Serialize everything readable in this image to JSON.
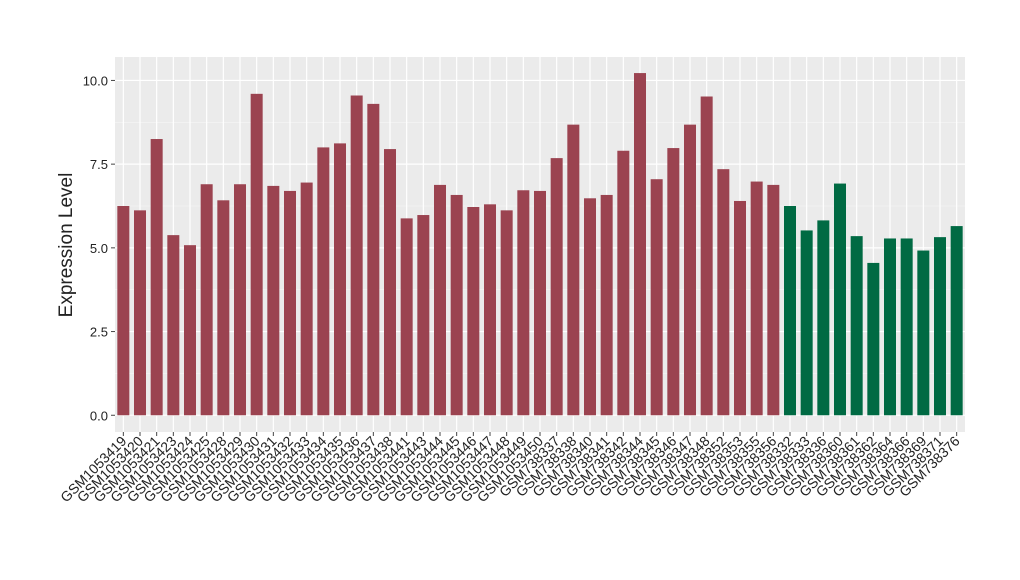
{
  "chart_data": {
    "type": "bar",
    "y_label": "Expression Level",
    "categories": [
      "GSM1053419",
      "GSM1053420",
      "GSM1053421",
      "GSM1053423",
      "GSM1053424",
      "GSM1053425",
      "GSM1053428",
      "GSM1053429",
      "GSM1053430",
      "GSM1053431",
      "GSM1053432",
      "GSM1053433",
      "GSM1053434",
      "GSM1053435",
      "GSM1053436",
      "GSM1053437",
      "GSM1053438",
      "GSM1053441",
      "GSM1053443",
      "GSM1053444",
      "GSM1053445",
      "GSM1053446",
      "GSM1053447",
      "GSM1053448",
      "GSM1053449",
      "GSM1053450",
      "GSM738337",
      "GSM738338",
      "GSM738340",
      "GSM738341",
      "GSM738342",
      "GSM738344",
      "GSM738345",
      "GSM738346",
      "GSM738347",
      "GSM738348",
      "GSM738352",
      "GSM738353",
      "GSM738355",
      "GSM738356",
      "GSM738332",
      "GSM738333",
      "GSM738336",
      "GSM738360",
      "GSM738361",
      "GSM738362",
      "GSM738364",
      "GSM738366",
      "GSM738369",
      "GSM738371",
      "GSM738376"
    ],
    "values": [
      6.25,
      6.12,
      8.25,
      5.38,
      5.08,
      6.9,
      6.42,
      6.9,
      9.6,
      6.85,
      6.7,
      6.95,
      8.0,
      8.12,
      9.55,
      9.3,
      7.95,
      5.88,
      5.98,
      6.88,
      6.58,
      6.22,
      6.3,
      6.12,
      6.72,
      6.7,
      7.68,
      8.68,
      6.48,
      6.58,
      7.9,
      10.22,
      7.05,
      7.98,
      8.68,
      9.52,
      7.35,
      6.4,
      6.98,
      6.88,
      6.25,
      5.52,
      5.82,
      6.92,
      5.35,
      4.55,
      5.28,
      5.28,
      4.92,
      5.32,
      5.65
    ],
    "colors": [
      "#9b4350",
      "#9b4350",
      "#9b4350",
      "#9b4350",
      "#9b4350",
      "#9b4350",
      "#9b4350",
      "#9b4350",
      "#9b4350",
      "#9b4350",
      "#9b4350",
      "#9b4350",
      "#9b4350",
      "#9b4350",
      "#9b4350",
      "#9b4350",
      "#9b4350",
      "#9b4350",
      "#9b4350",
      "#9b4350",
      "#9b4350",
      "#9b4350",
      "#9b4350",
      "#9b4350",
      "#9b4350",
      "#9b4350",
      "#9b4350",
      "#9b4350",
      "#9b4350",
      "#9b4350",
      "#9b4350",
      "#9b4350",
      "#9b4350",
      "#9b4350",
      "#9b4350",
      "#9b4350",
      "#9b4350",
      "#9b4350",
      "#9b4350",
      "#9b4350",
      "#006a43",
      "#006a43",
      "#006a43",
      "#006a43",
      "#006a43",
      "#006a43",
      "#006a43",
      "#006a43",
      "#006a43",
      "#006a43",
      "#006a43"
    ],
    "ylim": [
      -0.5,
      10.7
    ],
    "yticks": [
      {
        "value": 0,
        "label": "0.0"
      },
      {
        "value": 2.5,
        "label": "2.5"
      },
      {
        "value": 5,
        "label": "5.0"
      },
      {
        "value": 7.5,
        "label": "7.5"
      },
      {
        "value": 10,
        "label": "10.0"
      }
    ],
    "grid": true
  }
}
